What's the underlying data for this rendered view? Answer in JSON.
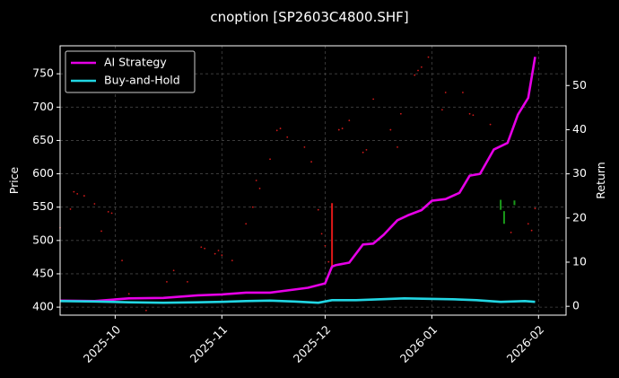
{
  "chart_data": {
    "type": "line",
    "title": "cnoption [SP2603C4800.SHF]",
    "xlabel": "",
    "ylabel_left": "Price",
    "ylabel_right": "Return",
    "x_ticks": [
      "2025-10",
      "2025-11",
      "2025-12",
      "2026-01",
      "2026-02"
    ],
    "x_range": [
      "2025-09-15",
      "2026-02-09"
    ],
    "y_left_ticks": [
      400,
      450,
      500,
      550,
      600,
      650,
      700,
      750
    ],
    "y_left_range": [
      388,
      792
    ],
    "y_right_ticks": [
      0,
      10,
      20,
      30,
      40,
      50
    ],
    "y_right_range": [
      -2,
      59
    ],
    "grid": true,
    "legend_position": "top-left",
    "colors": {
      "background": "#000000",
      "strategy": "#e600e6",
      "buy_and_hold": "#22d6e3",
      "price_dots": "#d01a1a",
      "red_candle": "#e01818",
      "green_candle": "#1a9a1a",
      "grid": "#444444"
    },
    "series": [
      {
        "name": "AI Strategy",
        "axis": "right",
        "x": [
          "2025-09-15",
          "2025-09-25",
          "2025-10-05",
          "2025-10-15",
          "2025-10-25",
          "2025-11-01",
          "2025-11-08",
          "2025-11-15",
          "2025-11-22",
          "2025-11-26",
          "2025-12-01",
          "2025-12-03",
          "2025-12-04",
          "2025-12-08",
          "2025-12-12",
          "2025-12-15",
          "2025-12-18",
          "2025-12-22",
          "2025-12-25",
          "2025-12-29",
          "2026-01-01",
          "2026-01-05",
          "2026-01-09",
          "2026-01-12",
          "2026-01-15",
          "2026-01-19",
          "2026-01-23",
          "2026-01-26",
          "2026-01-29",
          "2026-01-31"
        ],
        "values": [
          1.3,
          1.2,
          1.8,
          1.9,
          2.5,
          2.7,
          3.1,
          3.1,
          3.8,
          4.2,
          5.2,
          9.0,
          9.3,
          9.9,
          14.0,
          14.2,
          16.2,
          19.5,
          20.6,
          21.8,
          23.9,
          24.3,
          25.7,
          29.6,
          30.0,
          35.5,
          37.0,
          43.4,
          47.2,
          56.5
        ]
      },
      {
        "name": "Buy-and-Hold",
        "axis": "right",
        "x": [
          "2025-09-15",
          "2025-09-25",
          "2025-10-05",
          "2025-10-15",
          "2025-10-25",
          "2025-11-01",
          "2025-11-08",
          "2025-11-15",
          "2025-11-22",
          "2025-11-29",
          "2025-12-03",
          "2025-12-10",
          "2025-12-17",
          "2025-12-24",
          "2025-12-31",
          "2026-01-07",
          "2026-01-14",
          "2026-01-21",
          "2026-01-28",
          "2026-01-31"
        ],
        "values": [
          1.2,
          1.1,
          0.9,
          0.8,
          0.9,
          1.0,
          1.2,
          1.3,
          1.1,
          0.8,
          1.4,
          1.4,
          1.6,
          1.8,
          1.7,
          1.6,
          1.4,
          1.0,
          1.2,
          1.0
        ]
      }
    ],
    "price_points": [
      {
        "x": "2025-09-15",
        "y": 519
      },
      {
        "x": "2025-09-18",
        "y": 547
      },
      {
        "x": "2025-09-19",
        "y": 573
      },
      {
        "x": "2025-09-20",
        "y": 570
      },
      {
        "x": "2025-09-22",
        "y": 567
      },
      {
        "x": "2025-09-25",
        "y": 555
      },
      {
        "x": "2025-09-27",
        "y": 514
      },
      {
        "x": "2025-09-29",
        "y": 543
      },
      {
        "x": "2025-09-30",
        "y": 541
      },
      {
        "x": "2025-10-03",
        "y": 470
      },
      {
        "x": "2025-10-05",
        "y": 420
      },
      {
        "x": "2025-10-10",
        "y": 395
      },
      {
        "x": "2025-10-16",
        "y": 438
      },
      {
        "x": "2025-10-18",
        "y": 455
      },
      {
        "x": "2025-10-22",
        "y": 438
      },
      {
        "x": "2025-10-26",
        "y": 490
      },
      {
        "x": "2025-10-27",
        "y": 488
      },
      {
        "x": "2025-10-30",
        "y": 480
      },
      {
        "x": "2025-10-31",
        "y": 485
      },
      {
        "x": "2025-11-01",
        "y": 478
      },
      {
        "x": "2025-11-04",
        "y": 470
      },
      {
        "x": "2025-11-08",
        "y": 525
      },
      {
        "x": "2025-11-10",
        "y": 550
      },
      {
        "x": "2025-11-11",
        "y": 590
      },
      {
        "x": "2025-11-12",
        "y": 578
      },
      {
        "x": "2025-11-15",
        "y": 622
      },
      {
        "x": "2025-11-17",
        "y": 665
      },
      {
        "x": "2025-11-18",
        "y": 668
      },
      {
        "x": "2025-11-20",
        "y": 655
      },
      {
        "x": "2025-11-25",
        "y": 640
      },
      {
        "x": "2025-11-27",
        "y": 618
      },
      {
        "x": "2025-11-29",
        "y": 546
      },
      {
        "x": "2025-11-30",
        "y": 510
      },
      {
        "x": "2025-12-01",
        "y": 492
      },
      {
        "x": "2025-12-02",
        "y": 468
      },
      {
        "x": "2025-12-03",
        "y": 460
      },
      {
        "x": "2025-12-05",
        "y": 666
      },
      {
        "x": "2025-12-06",
        "y": 668
      },
      {
        "x": "2025-12-08",
        "y": 680
      },
      {
        "x": "2025-12-12",
        "y": 632
      },
      {
        "x": "2025-12-13",
        "y": 636
      },
      {
        "x": "2025-12-15",
        "y": 712
      },
      {
        "x": "2025-12-20",
        "y": 666
      },
      {
        "x": "2025-12-22",
        "y": 640
      },
      {
        "x": "2025-12-23",
        "y": 690
      },
      {
        "x": "2025-12-27",
        "y": 748
      },
      {
        "x": "2025-12-28",
        "y": 755
      },
      {
        "x": "2025-12-29",
        "y": 760
      },
      {
        "x": "2025-12-31",
        "y": 775
      },
      {
        "x": "2026-01-04",
        "y": 696
      },
      {
        "x": "2026-01-05",
        "y": 722
      },
      {
        "x": "2026-01-10",
        "y": 722
      },
      {
        "x": "2026-01-12",
        "y": 690
      },
      {
        "x": "2026-01-13",
        "y": 688
      },
      {
        "x": "2026-01-18",
        "y": 674
      },
      {
        "x": "2026-01-24",
        "y": 512
      },
      {
        "x": "2026-01-29",
        "y": 525
      },
      {
        "x": "2026-01-30",
        "y": 515
      },
      {
        "x": "2026-01-31",
        "y": 548
      }
    ],
    "candles": [
      {
        "x": "2025-12-03",
        "low": 460,
        "high": 556,
        "color": "red"
      },
      {
        "x": "2026-01-21",
        "low": 546,
        "high": 561,
        "color": "green"
      },
      {
        "x": "2026-01-22",
        "low": 525,
        "high": 544,
        "color": "green"
      },
      {
        "x": "2026-01-25",
        "low": 553,
        "high": 560,
        "color": "green"
      }
    ]
  }
}
